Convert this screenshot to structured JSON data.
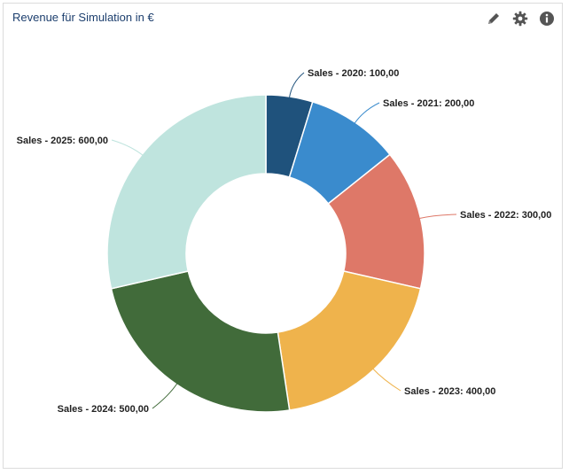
{
  "panel": {
    "title": "Revenue für Simulation in €",
    "icons": [
      "pencil-icon",
      "gear-icon",
      "info-icon"
    ]
  },
  "colors": {
    "title": "#1d3f6e",
    "icon": "#555555",
    "slice_border": "#ffffff"
  },
  "chart_data": {
    "type": "pie",
    "variant": "donut",
    "title": "Revenue für Simulation in €",
    "categories": [
      "Sales - 2020",
      "Sales - 2021",
      "Sales - 2022",
      "Sales - 2023",
      "Sales - 2024",
      "Sales - 2025"
    ],
    "values": [
      100,
      200,
      300,
      400,
      500,
      600
    ],
    "labels": [
      "Sales - 2020: 100,00",
      "Sales - 2021: 200,00",
      "Sales - 2022: 300,00",
      "Sales - 2023: 400,00",
      "Sales - 2024: 500,00",
      "Sales - 2025: 600,00"
    ],
    "colors": [
      "#1f527c",
      "#3a8bcd",
      "#de7868",
      "#efb34c",
      "#416b3a",
      "#bfe4de"
    ],
    "start": "top, clockwise",
    "legend": "none, data labels with leader lines"
  }
}
